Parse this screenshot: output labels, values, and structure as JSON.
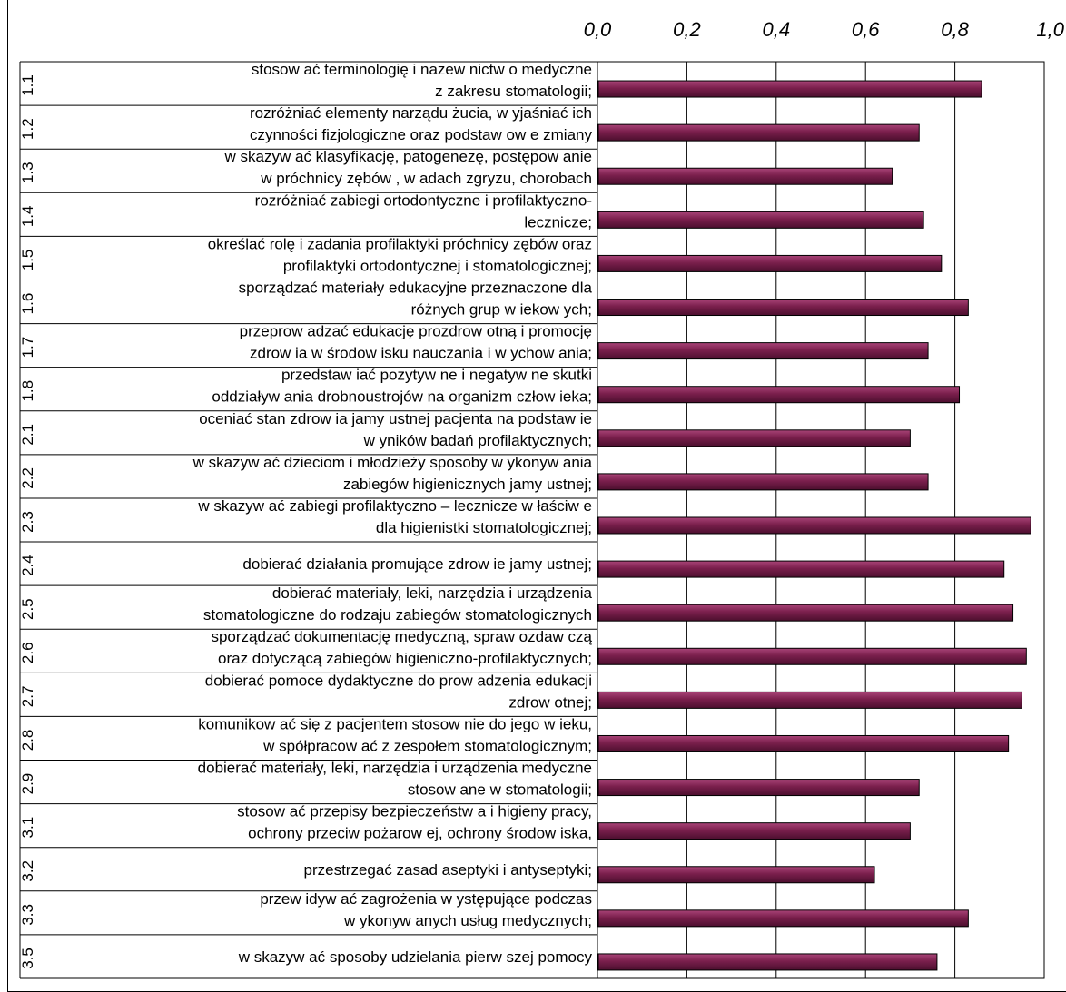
{
  "chart_data": {
    "type": "bar",
    "orientation": "horizontal",
    "xlim": [
      0,
      1
    ],
    "ticks": [
      "0,0",
      "0,2",
      "0,4",
      "0,6",
      "0,8",
      "1,0"
    ],
    "tick_values": [
      0,
      0.2,
      0.4,
      0.6,
      0.8,
      1.0
    ],
    "grid": true,
    "bar_color": "#7a1f4c",
    "categories": [
      {
        "code": "1.1",
        "lines": [
          "stosow ać terminologię i nazew nictw o medyczne",
          "z zakresu stomatologii;"
        ]
      },
      {
        "code": "1.2",
        "lines": [
          "rozróżniać elementy narządu żucia, w yjaśniać ich",
          "czynności fizjologiczne oraz podstaw ow e zmiany"
        ]
      },
      {
        "code": "1.3",
        "lines": [
          "w skazyw ać klasyfikację, patogenezę, postępow anie",
          "w  próchnicy zębów , w adach zgryzu, chorobach"
        ]
      },
      {
        "code": "1.4",
        "lines": [
          "rozróżniać zabiegi ortodontyczne i profilaktyczno-",
          "lecznicze;"
        ]
      },
      {
        "code": "1.5",
        "lines": [
          "określać rolę i zadania profilaktyki próchnicy zębów  oraz",
          "profilaktyki ortodontycznej i stomatologicznej;"
        ]
      },
      {
        "code": "1.6",
        "lines": [
          "sporządzać materiały edukacyjne przeznaczone dla",
          "różnych grup w iekow ych;"
        ]
      },
      {
        "code": "1.7",
        "lines": [
          "przeprow adzać edukację prozdrow otną i promocję",
          "zdrow ia w  środow isku nauczania i w ychow ania;"
        ]
      },
      {
        "code": "1.8",
        "lines": [
          "przedstaw iać pozytyw ne i negatyw ne skutki",
          "oddziaływ ania drobnoustrojów  na organizm człow ieka;"
        ]
      },
      {
        "code": "2.1",
        "lines": [
          "oceniać stan zdrow ia jamy ustnej pacjenta na podstaw ie",
          "w yników  badań profilaktycznych;"
        ]
      },
      {
        "code": "2.2",
        "lines": [
          "w skazyw ać dzieciom i młodzieży sposoby w ykonyw ania",
          "zabiegów  higienicznych jamy ustnej;"
        ]
      },
      {
        "code": "2.3",
        "lines": [
          "w skazyw ać zabiegi profilaktyczno – lecznicze w łaściw e",
          "dla higienistki stomatologicznej;"
        ]
      },
      {
        "code": "2.4",
        "lines": [
          "dobierać działania promujące zdrow ie jamy ustnej;"
        ]
      },
      {
        "code": "2.5",
        "lines": [
          "dobierać materiały, leki, narzędzia i urządzenia",
          "stomatologiczne do rodzaju zabiegów  stomatologicznych"
        ]
      },
      {
        "code": "2.6",
        "lines": [
          "sporządzać dokumentację medyczną, spraw ozdaw czą",
          "oraz dotyczącą zabiegów  higieniczno-profilaktycznych;"
        ]
      },
      {
        "code": "2.7",
        "lines": [
          "dobierać pomoce dydaktyczne do prow adzenia edukacji",
          "zdrow otnej;"
        ]
      },
      {
        "code": "2.8",
        "lines": [
          "komunikow ać się z pacjentem stosow nie do jego w ieku,",
          "w spółpracow ać z zespołem stomatologicznym;"
        ]
      },
      {
        "code": "2.9",
        "lines": [
          "dobierać  materiały, leki, narzędzia i urządzenia medyczne",
          "stosow ane w  stomatologii;"
        ]
      },
      {
        "code": "3.1",
        "lines": [
          "stosow ać przepisy bezpieczeństw a i higieny pracy,",
          "ochrony przeciw pożarow ej, ochrony środow iska,"
        ]
      },
      {
        "code": "3.2",
        "lines": [
          "przestrzegać zasad aseptyki i antyseptyki;"
        ]
      },
      {
        "code": "3.3",
        "lines": [
          "przew idyw ać zagrożenia w ystępujące podczas",
          "w ykonyw anych usług medycznych;"
        ]
      },
      {
        "code": "3.5",
        "lines": [
          "w skazyw ać sposoby udzielania pierw szej pomocy"
        ]
      }
    ],
    "values": [
      0.86,
      0.72,
      0.66,
      0.73,
      0.77,
      0.83,
      0.74,
      0.81,
      0.7,
      0.74,
      0.97,
      0.91,
      0.93,
      0.96,
      0.95,
      0.92,
      0.72,
      0.7,
      0.62,
      0.83,
      0.76
    ]
  }
}
